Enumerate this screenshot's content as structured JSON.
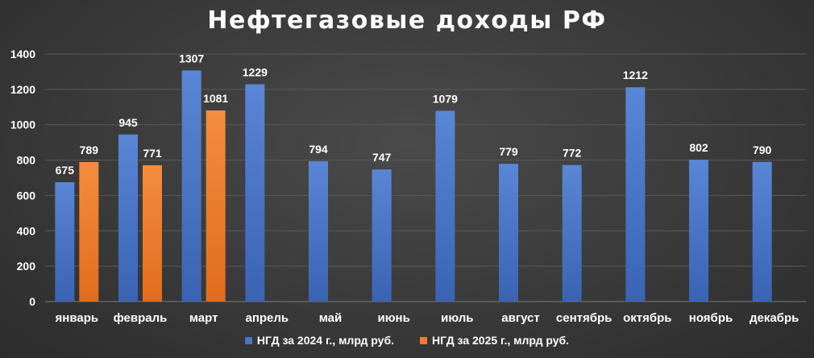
{
  "title": "Нефтегазовые доходы РФ",
  "colors": {
    "series_1": "#4a74c6",
    "series_2": "#ee7d31",
    "text": "#ffffff",
    "grid": "#5a5a5a"
  },
  "chart_data": {
    "type": "bar",
    "title": "Нефтегазовые доходы РФ",
    "xlabel": "",
    "ylabel": "",
    "ylim": [
      0,
      1400
    ],
    "yticks": [
      0,
      200,
      400,
      600,
      800,
      1000,
      1200,
      1400
    ],
    "grid": true,
    "legend_position": "bottom",
    "categories": [
      "январь",
      "февраль",
      "март",
      "апрель",
      "май",
      "июнь",
      "июль",
      "август",
      "сентябрь",
      "октябрь",
      "ноябрь",
      "декабрь"
    ],
    "series": [
      {
        "name": "НГД за 2024 г., млрд руб.",
        "color": "#4a74c6",
        "values": [
          675,
          945,
          1307,
          1229,
          794,
          747,
          1079,
          779,
          772,
          1212,
          802,
          790
        ]
      },
      {
        "name": "НГД за 2025 г., млрд руб.",
        "color": "#ee7d31",
        "values": [
          789,
          771,
          1081,
          null,
          null,
          null,
          null,
          null,
          null,
          null,
          null,
          null
        ]
      }
    ]
  }
}
